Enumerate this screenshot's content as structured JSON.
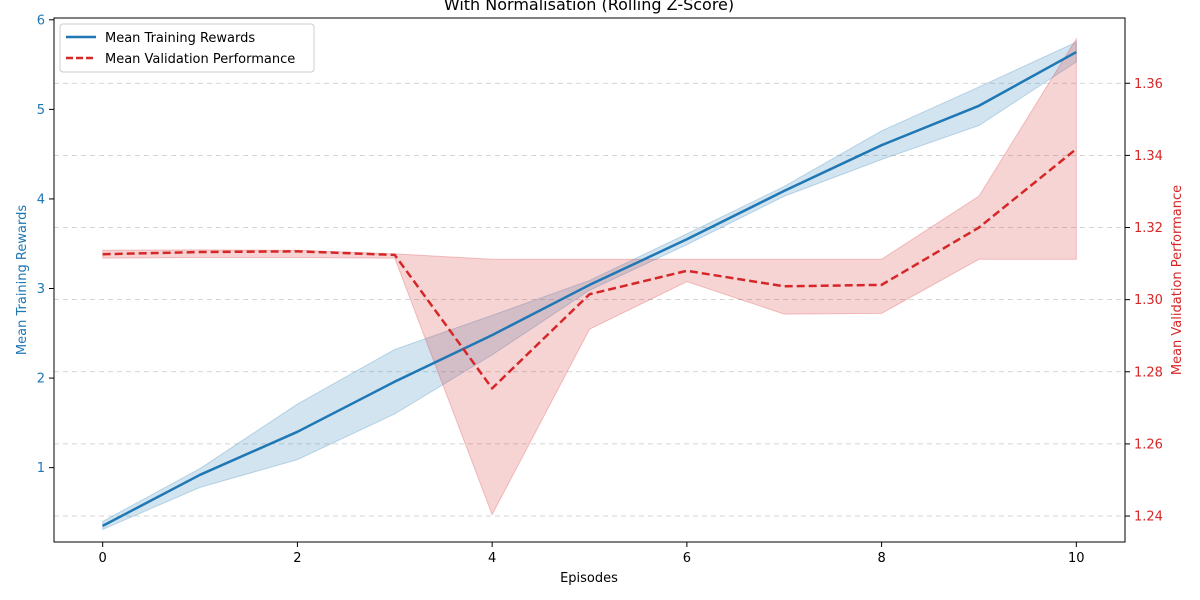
{
  "chart_data": {
    "type": "line",
    "title": "With Normalisation (Rolling Z-Score)",
    "xlabel": "Episodes",
    "ylabel_left": "Mean Training Rewards",
    "ylabel_right": "Mean Validation Performance",
    "x": [
      0,
      1,
      2,
      3,
      4,
      5,
      6,
      7,
      8,
      9,
      10
    ],
    "xlim": [
      -0.5,
      10.5
    ],
    "xticks": [
      0,
      2,
      4,
      6,
      8,
      10
    ],
    "ylim_left": [
      0.17,
      6.02
    ],
    "yticks_left": [
      1,
      2,
      3,
      4,
      5,
      6
    ],
    "ylim_right": [
      1.2328,
      1.3781
    ],
    "yticks_right": [
      1.24,
      1.26,
      1.28,
      1.3,
      1.32,
      1.34,
      1.36
    ],
    "grid": true,
    "legend_position": "top-left",
    "colors": {
      "training": "#1f77b4",
      "validation": "#d62728"
    },
    "series": [
      {
        "name": "Mean Training Rewards",
        "axis": "left",
        "style": "solid",
        "values": [
          0.35,
          0.92,
          1.4,
          1.96,
          2.48,
          3.04,
          3.55,
          4.09,
          4.6,
          5.04,
          5.64
        ],
        "lower": [
          0.31,
          0.78,
          1.09,
          1.6,
          2.26,
          2.98,
          3.49,
          4.03,
          4.44,
          4.82,
          5.53
        ],
        "upper": [
          0.4,
          0.99,
          1.71,
          2.32,
          2.7,
          3.09,
          3.61,
          4.14,
          4.76,
          5.25,
          5.75
        ]
      },
      {
        "name": "Mean Validation Performance",
        "axis": "right",
        "style": "dashed",
        "values": [
          1.3126,
          1.3132,
          1.3134,
          1.3124,
          1.2754,
          1.3015,
          1.308,
          1.3037,
          1.3041,
          1.32,
          1.3418
        ],
        "lower": [
          1.3115,
          1.3117,
          1.3117,
          1.3115,
          1.2404,
          1.2918,
          1.305,
          1.296,
          1.2962,
          1.3112,
          1.3112
        ],
        "upper": [
          1.3137,
          1.3138,
          1.3137,
          1.3127,
          1.3112,
          1.3112,
          1.3112,
          1.3112,
          1.3112,
          1.3287,
          1.3723
        ]
      }
    ]
  }
}
